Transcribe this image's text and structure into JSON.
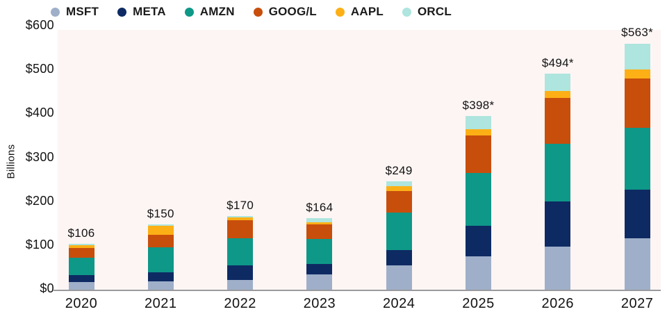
{
  "chart_data": {
    "type": "bar",
    "stacked": true,
    "title": "",
    "ylabel": "Billions",
    "xlabel": "",
    "ylim": [
      0,
      600
    ],
    "grid": false,
    "legend_position": "top",
    "plot_bg_color": "#fdf5f4",
    "axis_line_color": "#9a9a9e",
    "y_ticks": [
      {
        "value": 0,
        "label": "$0"
      },
      {
        "value": 100,
        "label": "$100"
      },
      {
        "value": 200,
        "label": "$200"
      },
      {
        "value": 300,
        "label": "$300"
      },
      {
        "value": 400,
        "label": "$400"
      },
      {
        "value": 500,
        "label": "$500"
      },
      {
        "value": 600,
        "label": "$600"
      }
    ],
    "categories": [
      "2020",
      "2021",
      "2022",
      "2023",
      "2024",
      "2025",
      "2026",
      "2027"
    ],
    "series": [
      {
        "name": "MSFT",
        "color": "#9fafc9",
        "values": [
          19,
          21,
          23,
          36,
          57,
          78,
          100,
          118
        ]
      },
      {
        "name": "META",
        "color": "#0e2a63",
        "values": [
          16,
          20,
          34,
          25,
          34,
          70,
          103,
          111
        ]
      },
      {
        "name": "AMZN",
        "color": "#0e9888",
        "values": [
          40,
          58,
          62,
          57,
          86,
          119,
          131,
          142
        ]
      },
      {
        "name": "GOOG/L",
        "color": "#c84e0c",
        "values": [
          22,
          28,
          41,
          33,
          50,
          86,
          104,
          112
        ]
      },
      {
        "name": "AAPL",
        "color": "#fcb016",
        "values": [
          6,
          21,
          6,
          5,
          11,
          15,
          16,
          20
        ]
      },
      {
        "name": "ORCL",
        "color": "#aee5de",
        "values": [
          3,
          2,
          4,
          8,
          11,
          30,
          40,
          60
        ]
      }
    ],
    "totals": [
      "$106",
      "$150",
      "$170",
      "$164",
      "$249",
      "$398*",
      "$494*",
      "$563*"
    ]
  }
}
